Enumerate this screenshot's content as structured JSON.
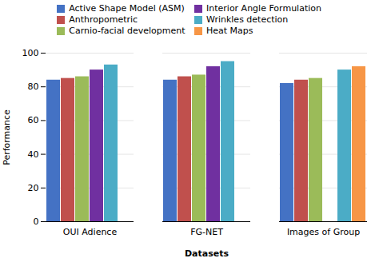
{
  "chart_data": {
    "type": "bar",
    "categories": [
      "OUI Adience",
      "FG-NET",
      "Images of Group"
    ],
    "series": [
      {
        "name": "Active Shape Model (ASM)",
        "color": "#4472C4",
        "values": [
          84,
          84,
          82
        ]
      },
      {
        "name": "Anthropometric",
        "color": "#C0504D",
        "values": [
          85,
          86,
          84
        ]
      },
      {
        "name": "Carnio-facial development",
        "color": "#9BBB59",
        "values": [
          86,
          87,
          85
        ]
      },
      {
        "name": "Interior Angle Formulation",
        "color": "#7030A0",
        "values": [
          90,
          92,
          null
        ]
      },
      {
        "name": "Wrinkles detection",
        "color": "#4BACC6",
        "values": [
          93,
          95,
          90
        ]
      },
      {
        "name": "Heat Maps",
        "color": "#F79646",
        "values": [
          null,
          null,
          92
        ]
      }
    ],
    "xlabel": "Datasets",
    "ylabel": "Performance",
    "ylim": [
      0,
      100
    ],
    "yticks": [
      0,
      20,
      40,
      60,
      80,
      100
    ],
    "grid": true,
    "legend": "top"
  }
}
